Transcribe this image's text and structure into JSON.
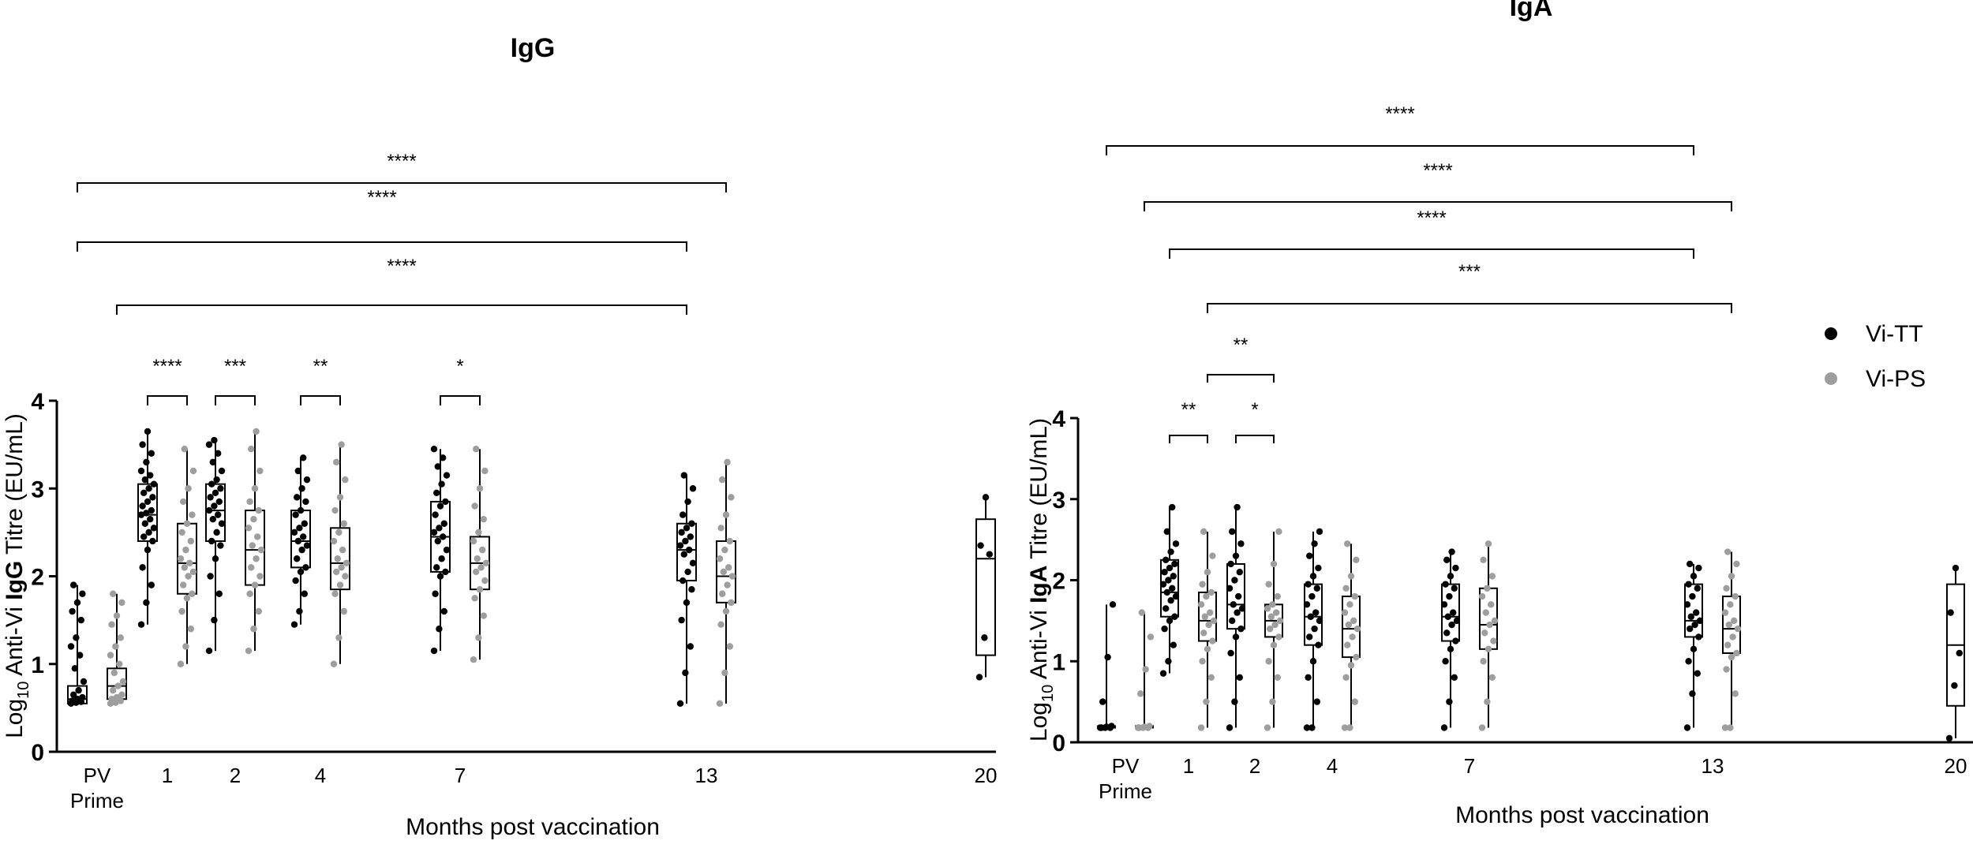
{
  "colors": {
    "vi_tt": "#000000",
    "vi_ps": "#9e9e9e",
    "axis": "#000000",
    "box_fill": "#ffffff"
  },
  "legend": [
    {
      "name": "Vi-TT",
      "color": "#000000"
    },
    {
      "name": "Vi-PS",
      "color": "#9e9e9e"
    }
  ],
  "chart_data": [
    {
      "type": "box",
      "title": "IgG",
      "ylabel": {
        "prefix": "Log",
        "sub": "10",
        "mid": " Anti-Vi ",
        "bold": "IgG",
        "suffix": " Titre (EU/mL)"
      },
      "xlabel": "Months post vaccination",
      "ylim": [
        0,
        4
      ],
      "yticks": [
        "0",
        "1",
        "2",
        "3",
        "4"
      ],
      "timepoints": [
        "PV\nPrime",
        "1",
        "2",
        "4",
        "7",
        "13",
        "20"
      ],
      "series": [
        {
          "name": "Vi-TT",
          "groups": [
            {
              "t": "PV\nPrime",
              "min": 0.55,
              "q1": 0.55,
              "median": 0.6,
              "q3": 0.75,
              "max": 1.9,
              "points": [
                0.55,
                0.56,
                0.57,
                0.58,
                0.6,
                0.62,
                0.65,
                0.7,
                0.8,
                0.95,
                1.1,
                1.2,
                1.3,
                1.5,
                1.6,
                1.7,
                1.8,
                1.9
              ]
            },
            {
              "t": "1",
              "min": 1.45,
              "q1": 2.4,
              "median": 2.7,
              "q3": 3.05,
              "max": 3.65,
              "points": [
                1.45,
                1.7,
                1.9,
                2.1,
                2.3,
                2.4,
                2.45,
                2.5,
                2.55,
                2.6,
                2.65,
                2.7,
                2.72,
                2.75,
                2.8,
                2.85,
                2.9,
                2.95,
                3.0,
                3.05,
                3.1,
                3.15,
                3.2,
                3.3,
                3.4,
                3.5,
                3.65
              ]
            },
            {
              "t": "2",
              "min": 1.15,
              "q1": 2.4,
              "median": 2.75,
              "q3": 3.05,
              "max": 3.55,
              "points": [
                1.15,
                1.5,
                1.8,
                2.0,
                2.2,
                2.35,
                2.4,
                2.5,
                2.6,
                2.65,
                2.7,
                2.75,
                2.8,
                2.85,
                2.9,
                2.95,
                3.0,
                3.05,
                3.1,
                3.2,
                3.3,
                3.4,
                3.5,
                3.55
              ]
            },
            {
              "t": "4",
              "min": 1.45,
              "q1": 2.1,
              "median": 2.4,
              "q3": 2.75,
              "max": 3.35,
              "points": [
                1.45,
                1.6,
                1.8,
                1.95,
                2.05,
                2.1,
                2.2,
                2.3,
                2.35,
                2.4,
                2.45,
                2.5,
                2.55,
                2.6,
                2.7,
                2.75,
                2.85,
                2.9,
                3.0,
                3.1,
                3.2,
                3.35
              ]
            },
            {
              "t": "7",
              "min": 1.15,
              "q1": 2.05,
              "median": 2.45,
              "q3": 2.85,
              "max": 3.45,
              "points": [
                1.15,
                1.4,
                1.6,
                1.8,
                2.0,
                2.05,
                2.1,
                2.2,
                2.3,
                2.4,
                2.45,
                2.5,
                2.55,
                2.6,
                2.7,
                2.8,
                2.85,
                2.95,
                3.05,
                3.15,
                3.25,
                3.35,
                3.45
              ]
            },
            {
              "t": "13",
              "min": 0.55,
              "q1": 1.95,
              "median": 2.3,
              "q3": 2.6,
              "max": 3.15,
              "points": [
                0.55,
                0.9,
                1.2,
                1.5,
                1.7,
                1.85,
                1.95,
                2.05,
                2.15,
                2.25,
                2.3,
                2.35,
                2.4,
                2.45,
                2.5,
                2.55,
                2.6,
                2.7,
                2.85,
                3.0,
                3.15
              ]
            },
            {
              "t": "20",
              "min": 0.85,
              "q1": 1.1,
              "median": 2.2,
              "q3": 2.65,
              "max": 2.9,
              "points": [
                0.85,
                1.3,
                2.25,
                2.35,
                2.9
              ]
            }
          ]
        },
        {
          "name": "Vi-PS",
          "groups": [
            {
              "t": "PV\nPrime",
              "min": 0.55,
              "q1": 0.6,
              "median": 0.75,
              "q3": 0.95,
              "max": 1.8,
              "points": [
                0.55,
                0.56,
                0.58,
                0.6,
                0.62,
                0.65,
                0.7,
                0.75,
                0.8,
                0.9,
                1.0,
                1.1,
                1.2,
                1.3,
                1.45,
                1.55,
                1.7,
                1.8
              ]
            },
            {
              "t": "1",
              "min": 1.0,
              "q1": 1.8,
              "median": 2.15,
              "q3": 2.6,
              "max": 3.45,
              "points": [
                1.0,
                1.2,
                1.4,
                1.6,
                1.75,
                1.8,
                1.9,
                2.0,
                2.05,
                2.1,
                2.15,
                2.2,
                2.3,
                2.4,
                2.5,
                2.6,
                2.7,
                2.85,
                3.0,
                3.2,
                3.45
              ]
            },
            {
              "t": "2",
              "min": 1.15,
              "q1": 1.9,
              "median": 2.3,
              "q3": 2.75,
              "max": 3.65,
              "points": [
                1.15,
                1.4,
                1.6,
                1.8,
                1.9,
                2.0,
                2.1,
                2.2,
                2.3,
                2.35,
                2.45,
                2.55,
                2.65,
                2.75,
                2.85,
                3.0,
                3.2,
                3.45,
                3.65
              ]
            },
            {
              "t": "4",
              "min": 1.0,
              "q1": 1.85,
              "median": 2.15,
              "q3": 2.55,
              "max": 3.5,
              "points": [
                1.0,
                1.3,
                1.6,
                1.8,
                1.9,
                2.0,
                2.05,
                2.1,
                2.15,
                2.2,
                2.3,
                2.4,
                2.5,
                2.6,
                2.75,
                2.9,
                3.1,
                3.3,
                3.5
              ]
            },
            {
              "t": "7",
              "min": 1.05,
              "q1": 1.85,
              "median": 2.15,
              "q3": 2.45,
              "max": 3.45,
              "points": [
                1.05,
                1.3,
                1.55,
                1.75,
                1.85,
                1.95,
                2.05,
                2.1,
                2.15,
                2.2,
                2.3,
                2.4,
                2.5,
                2.65,
                2.8,
                3.0,
                3.2,
                3.45
              ]
            },
            {
              "t": "13",
              "min": 0.55,
              "q1": 1.7,
              "median": 2.0,
              "q3": 2.4,
              "max": 3.3,
              "points": [
                0.55,
                0.9,
                1.2,
                1.45,
                1.6,
                1.7,
                1.8,
                1.9,
                2.0,
                2.05,
                2.1,
                2.2,
                2.3,
                2.4,
                2.55,
                2.7,
                2.9,
                3.1,
                3.3
              ]
            }
          ]
        }
      ],
      "brackets_across_time": [
        {
          "label": "****",
          "from_t": "PV\nPrime",
          "from_series": "Vi-TT",
          "to_t": "13",
          "to_series": "Vi-PS"
        },
        {
          "label": "****",
          "from_t": "PV\nPrime",
          "from_series": "Vi-TT",
          "to_t": "13",
          "to_series": "Vi-TT"
        },
        {
          "label": "****",
          "from_t": "PV\nPrime",
          "from_series": "Vi-PS",
          "to_t": "13",
          "to_series": "Vi-TT"
        }
      ],
      "brackets_within_time": [
        {
          "t": "1",
          "label": "****"
        },
        {
          "t": "2",
          "label": "***"
        },
        {
          "t": "4",
          "label": "**"
        },
        {
          "t": "7",
          "label": "*"
        }
      ]
    },
    {
      "type": "box",
      "title": "IgA",
      "ylabel": {
        "prefix": "Log",
        "sub": "10",
        "mid": " Anti-Vi ",
        "bold": "IgA",
        "suffix": " Titre (EU/mL)"
      },
      "xlabel": "Months post vaccination",
      "ylim": [
        0,
        4
      ],
      "yticks": [
        "0",
        "1",
        "2",
        "3",
        "4"
      ],
      "timepoints": [
        "PV\nPrime",
        "1",
        "2",
        "4",
        "7",
        "13",
        "20"
      ],
      "series": [
        {
          "name": "Vi-TT",
          "groups": [
            {
              "t": "PV\nPrime",
              "min": 0.18,
              "q1": 0.18,
              "median": 0.18,
              "q3": 0.2,
              "max": 1.7,
              "points": [
                0.18,
                0.18,
                0.18,
                0.18,
                0.19,
                0.2,
                0.5,
                1.05,
                1.7
              ]
            },
            {
              "t": "1",
              "min": 0.85,
              "q1": 1.55,
              "median": 1.85,
              "q3": 2.25,
              "max": 2.9,
              "points": [
                0.85,
                1.0,
                1.2,
                1.4,
                1.5,
                1.55,
                1.65,
                1.75,
                1.8,
                1.85,
                1.9,
                1.95,
                2.0,
                2.05,
                2.1,
                2.15,
                2.2,
                2.25,
                2.35,
                2.45,
                2.6,
                2.9
              ]
            },
            {
              "t": "2",
              "min": 0.18,
              "q1": 1.4,
              "median": 1.7,
              "q3": 2.2,
              "max": 2.9,
              "points": [
                0.18,
                0.5,
                0.8,
                1.1,
                1.3,
                1.4,
                1.5,
                1.6,
                1.65,
                1.7,
                1.8,
                1.9,
                2.0,
                2.1,
                2.2,
                2.3,
                2.45,
                2.6,
                2.9
              ]
            },
            {
              "t": "4",
              "min": 0.18,
              "q1": 1.2,
              "median": 1.55,
              "q3": 1.95,
              "max": 2.6,
              "points": [
                0.18,
                0.18,
                0.5,
                0.8,
                1.0,
                1.2,
                1.3,
                1.4,
                1.5,
                1.55,
                1.6,
                1.7,
                1.8,
                1.9,
                1.95,
                2.05,
                2.15,
                2.3,
                2.45,
                2.6
              ]
            },
            {
              "t": "7",
              "min": 0.18,
              "q1": 1.25,
              "median": 1.55,
              "q3": 1.95,
              "max": 2.35,
              "points": [
                0.18,
                0.5,
                0.8,
                1.0,
                1.15,
                1.25,
                1.35,
                1.45,
                1.5,
                1.55,
                1.6,
                1.7,
                1.8,
                1.9,
                1.95,
                2.05,
                2.15,
                2.25,
                2.35
              ]
            },
            {
              "t": "13",
              "min": 0.18,
              "q1": 1.3,
              "median": 1.5,
              "q3": 1.95,
              "max": 2.2,
              "points": [
                0.18,
                0.6,
                0.85,
                1.0,
                1.15,
                1.3,
                1.4,
                1.45,
                1.5,
                1.55,
                1.6,
                1.7,
                1.8,
                1.9,
                1.95,
                2.05,
                2.15,
                2.2
              ]
            },
            {
              "t": "20",
              "min": 0.05,
              "q1": 0.45,
              "median": 1.2,
              "q3": 1.95,
              "max": 2.15,
              "points": [
                0.05,
                0.7,
                1.1,
                1.6,
                2.15
              ]
            }
          ]
        },
        {
          "name": "Vi-PS",
          "groups": [
            {
              "t": "PV\nPrime",
              "min": 0.18,
              "q1": 0.18,
              "median": 0.18,
              "q3": 0.2,
              "max": 1.6,
              "points": [
                0.18,
                0.18,
                0.18,
                0.18,
                0.19,
                0.2,
                0.6,
                0.9,
                1.3,
                1.6
              ]
            },
            {
              "t": "1",
              "min": 0.18,
              "q1": 1.25,
              "median": 1.5,
              "q3": 1.85,
              "max": 2.6,
              "points": [
                0.18,
                0.5,
                0.8,
                1.0,
                1.15,
                1.25,
                1.35,
                1.45,
                1.5,
                1.55,
                1.6,
                1.7,
                1.8,
                1.85,
                1.95,
                2.1,
                2.3,
                2.6
              ]
            },
            {
              "t": "2",
              "min": 0.18,
              "q1": 1.3,
              "median": 1.5,
              "q3": 1.7,
              "max": 2.6,
              "points": [
                0.18,
                0.5,
                0.8,
                1.0,
                1.2,
                1.3,
                1.4,
                1.45,
                1.5,
                1.55,
                1.6,
                1.65,
                1.7,
                1.8,
                1.95,
                2.2,
                2.6
              ]
            },
            {
              "t": "4",
              "min": 0.18,
              "q1": 1.05,
              "median": 1.4,
              "q3": 1.8,
              "max": 2.45,
              "points": [
                0.18,
                0.18,
                0.5,
                0.8,
                0.95,
                1.05,
                1.2,
                1.3,
                1.4,
                1.45,
                1.5,
                1.6,
                1.7,
                1.8,
                1.9,
                2.05,
                2.25,
                2.45
              ]
            },
            {
              "t": "7",
              "min": 0.18,
              "q1": 1.15,
              "median": 1.45,
              "q3": 1.9,
              "max": 2.45,
              "points": [
                0.18,
                0.5,
                0.8,
                1.0,
                1.15,
                1.25,
                1.35,
                1.45,
                1.5,
                1.6,
                1.7,
                1.8,
                1.9,
                2.05,
                2.25,
                2.45
              ]
            },
            {
              "t": "13",
              "min": 0.18,
              "q1": 1.1,
              "median": 1.4,
              "q3": 1.8,
              "max": 2.35,
              "points": [
                0.18,
                0.18,
                0.6,
                0.9,
                1.05,
                1.1,
                1.2,
                1.3,
                1.4,
                1.45,
                1.5,
                1.6,
                1.7,
                1.8,
                1.9,
                2.05,
                2.2,
                2.35
              ]
            }
          ]
        }
      ],
      "brackets_across_time": [
        {
          "label": "****",
          "from_t": "PV\nPrime",
          "from_series": "Vi-TT",
          "to_t": "13",
          "to_series": "Vi-TT"
        },
        {
          "label": "****",
          "from_t": "PV\nPrime",
          "from_series": "Vi-PS",
          "to_t": "13",
          "to_series": "Vi-PS"
        },
        {
          "label": "****",
          "from_t": "1",
          "from_series": "Vi-TT",
          "to_t": "13",
          "to_series": "Vi-TT"
        },
        {
          "label": "***",
          "from_t": "1",
          "from_series": "Vi-PS",
          "to_t": "13",
          "to_series": "Vi-PS"
        }
      ],
      "brackets_within_time": [
        {
          "t": "1",
          "label": "**"
        },
        {
          "t": "2",
          "label": "*"
        }
      ],
      "brackets_other": [
        {
          "label": "**",
          "from_t": "1",
          "from_series": "Vi-PS",
          "to_t": "2",
          "to_series": "Vi-PS"
        }
      ]
    }
  ]
}
